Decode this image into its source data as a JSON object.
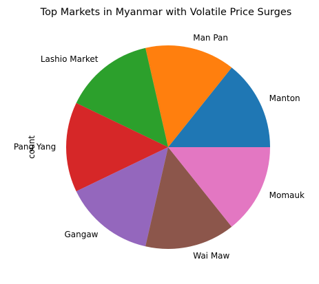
{
  "chart_data": {
    "type": "pie",
    "title": "Top Markets in Myanmar with Volatile Price Surges",
    "ylabel": "count",
    "categories": [
      "Manton",
      "Man Pan",
      "Lashio Market",
      "Pang Yang",
      "Gangaw",
      "Wai Maw",
      "Momauk"
    ],
    "values": [
      1,
      1,
      1,
      1,
      1,
      1,
      1
    ],
    "colors": [
      "#1f77b4",
      "#ff7f0e",
      "#2ca02c",
      "#d62728",
      "#9467bd",
      "#8c564b",
      "#e377c2"
    ],
    "start_angle_deg": 0,
    "direction": "counterclockwise",
    "legend": "none"
  }
}
